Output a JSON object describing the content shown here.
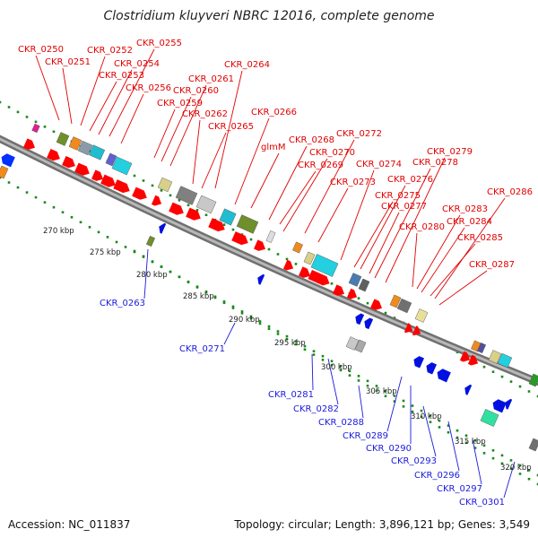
{
  "title": "Clostridium kluyveri NBRC 12016, complete genome",
  "accession": "Accession: NC_011837",
  "summary": "Topology: circular; Length: 3,896,121 bp; Genes: 3,549",
  "colors": {
    "forward_gene": "#ff0000",
    "reverse_gene": "#0000ee",
    "forward_label": "#e00000",
    "reverse_label": "#1a1adc",
    "backbone": "#909090",
    "ticks": "#1a8a1a"
  },
  "forward_labels": [
    "CKR_0250",
    "CKR_0251",
    "CKR_0252",
    "CKR_0253",
    "CKR_0254",
    "CKR_0255",
    "CKR_0256",
    "CKR_0259",
    "CKR_0260",
    "CKR_0261",
    "CKR_0262",
    "CKR_0264",
    "CKR_0265",
    "CKR_0266",
    "glmM",
    "CKR_0268",
    "CKR_0269",
    "CKR_0270",
    "CKR_0272",
    "CKR_0273",
    "CKR_0274",
    "CKR_0275",
    "CKR_0276",
    "CKR_0277",
    "CKR_0278",
    "CKR_0279",
    "CKR_0280",
    "CKR_0283",
    "CKR_0284",
    "CKR_0285",
    "CKR_0286",
    "CKR_0287"
  ],
  "reverse_labels": [
    "CKR_0263",
    "CKR_0271",
    "CKR_0281",
    "CKR_0282",
    "CKR_0288",
    "CKR_0289",
    "CKR_0290",
    "CKR_0293",
    "CKR_0296",
    "CKR_0297",
    "CKR_0301"
  ],
  "scale_labels": [
    "270 kbp",
    "275 kbp",
    "280 kbp",
    "285 kbp",
    "290 kbp",
    "295 kbp",
    "300 kbp",
    "305 kbp",
    "310 kbp",
    "315 kbp",
    "320 kbp"
  ]
}
